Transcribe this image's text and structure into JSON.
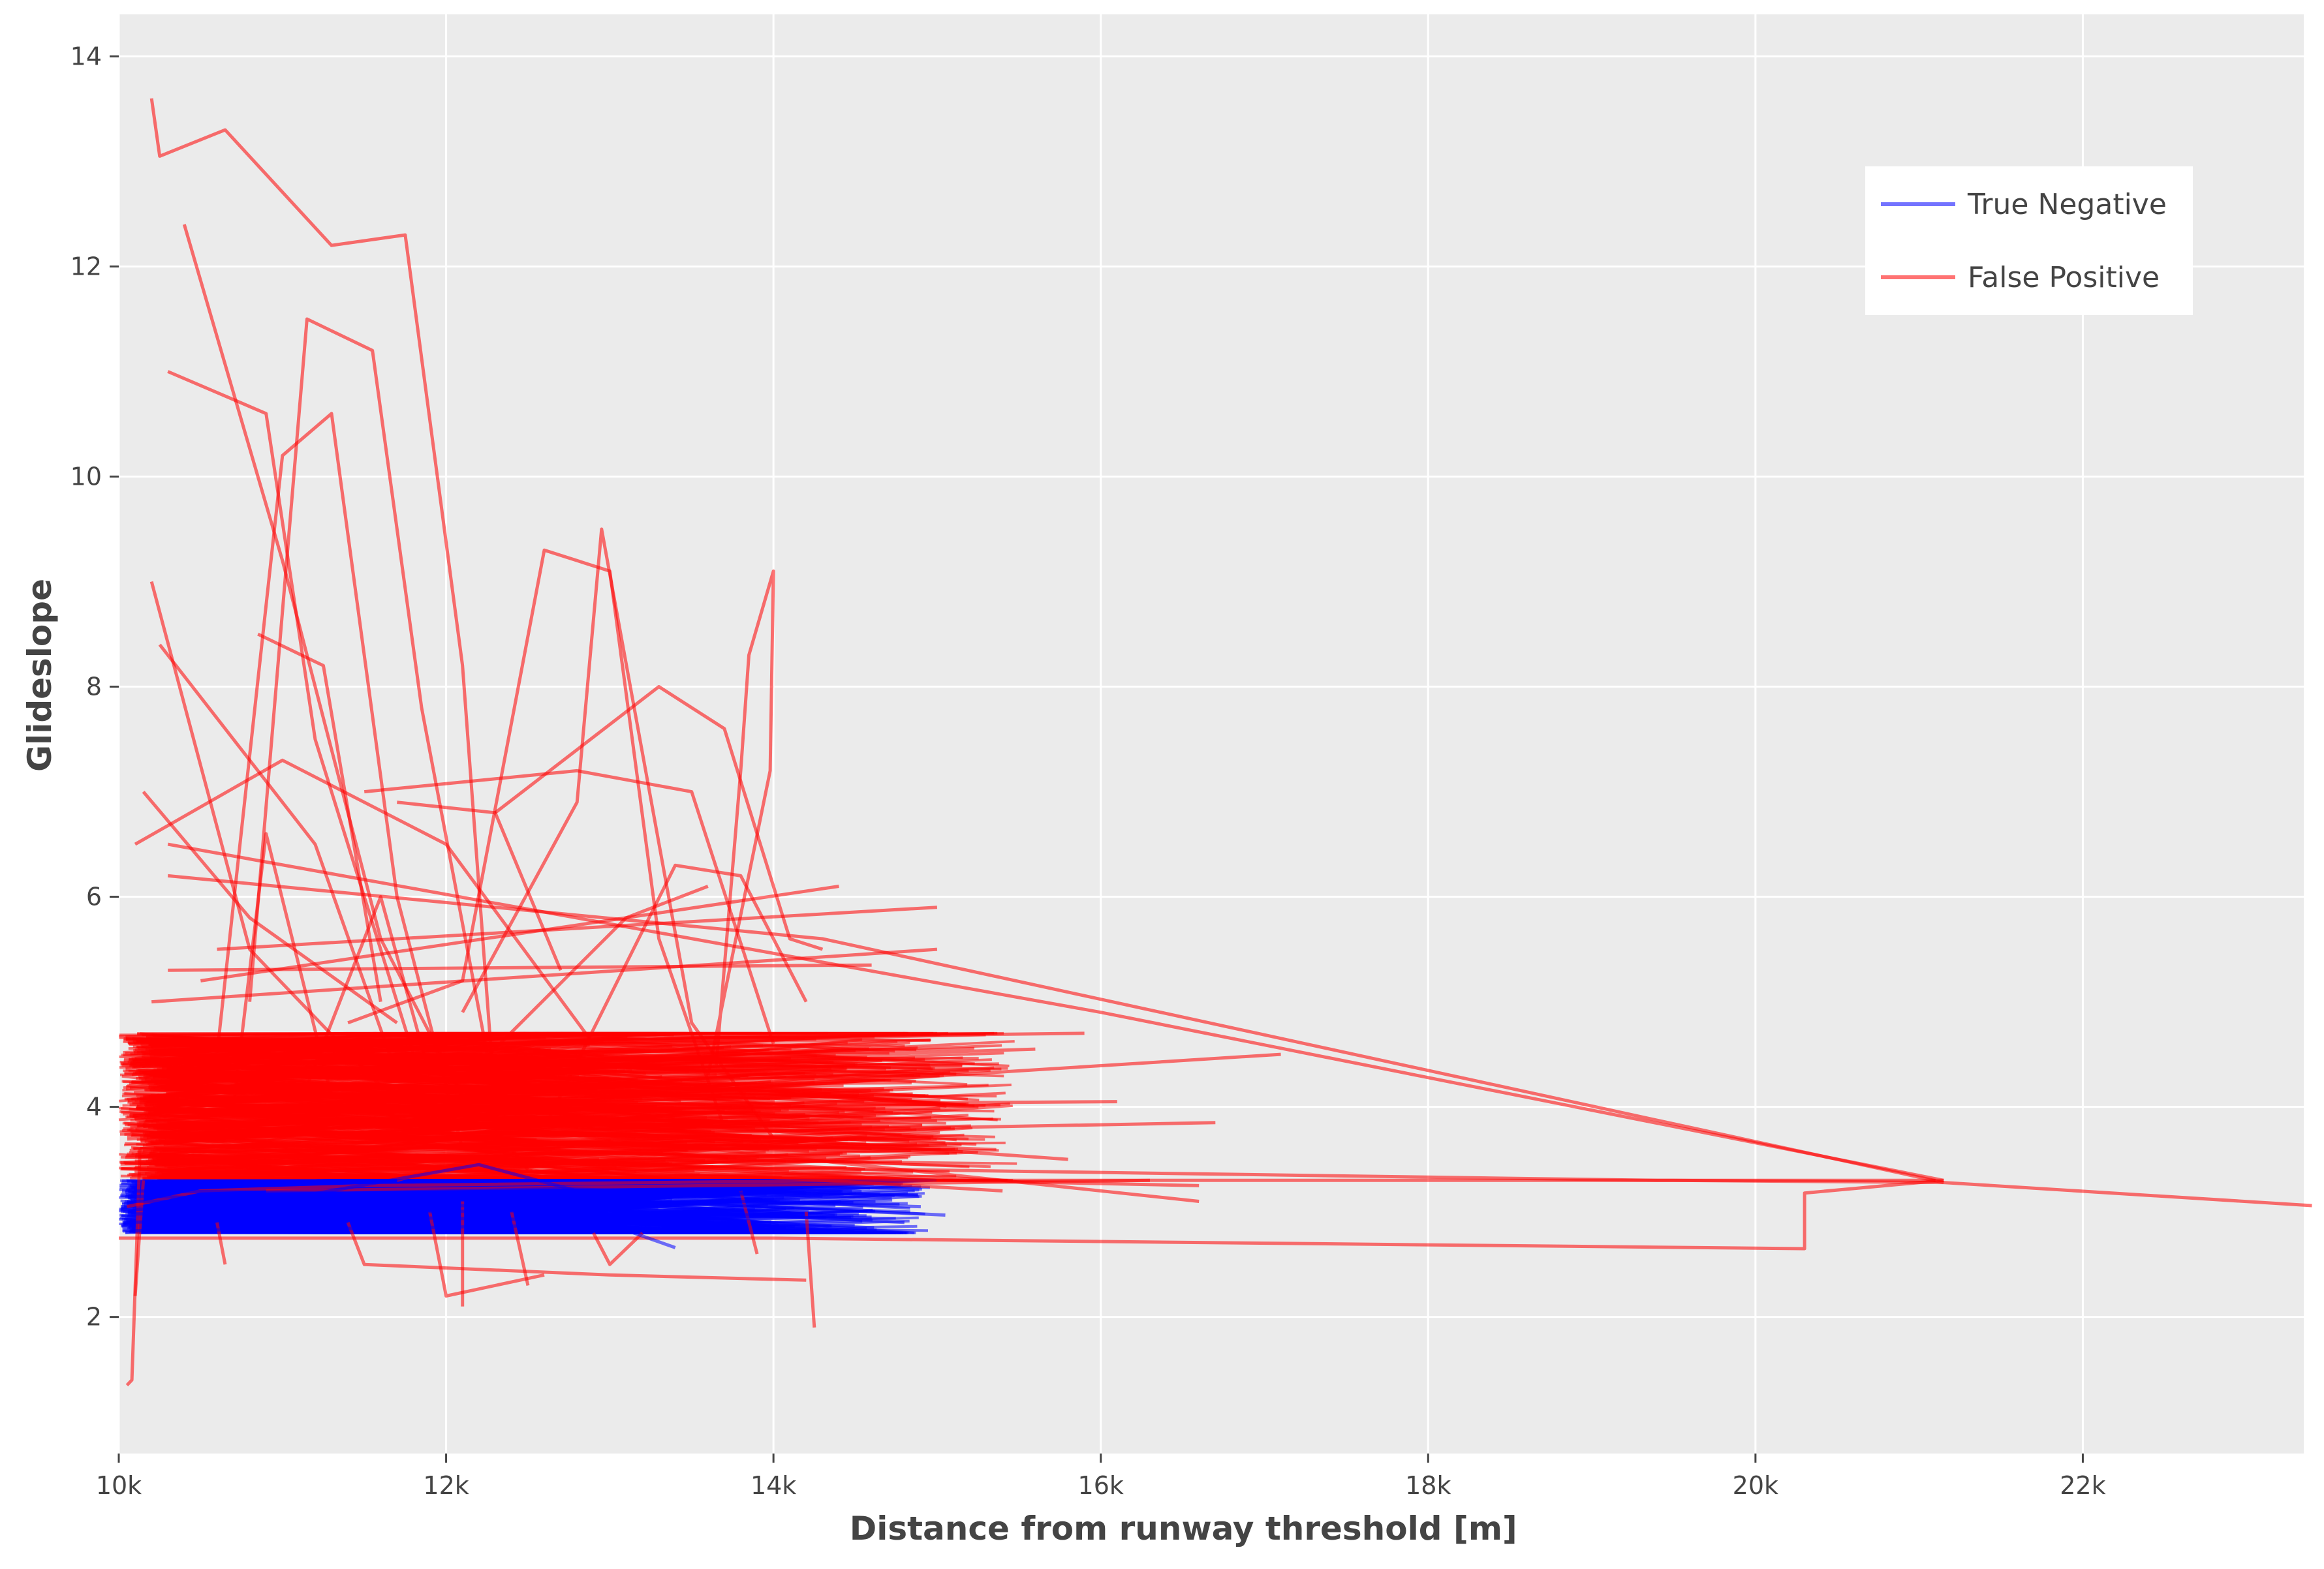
{
  "chart_data": {
    "type": "line",
    "title": "",
    "xlabel": "Distance from runway threshold [m]",
    "ylabel": "Glideslope",
    "xlim": [
      10000,
      23350
    ],
    "ylim": [
      0.7,
      14.4
    ],
    "x_tick_values": [
      10000,
      12000,
      14000,
      16000,
      18000,
      20000,
      22000
    ],
    "x_tick_labels": [
      "10k",
      "12k",
      "14k",
      "16k",
      "18k",
      "20k",
      "22k"
    ],
    "y_tick_values": [
      2,
      4,
      6,
      8,
      10,
      12,
      14
    ],
    "y_tick_labels": [
      "2",
      "4",
      "6",
      "8",
      "10",
      "12",
      "14"
    ],
    "grid": true,
    "background_color": "#ebebeb",
    "legend": {
      "position": "top-right"
    },
    "series": [
      {
        "name": "True Negative",
        "color": "#0000ff",
        "opacity": 0.55,
        "band_x": [
          10000,
          15000
        ],
        "band_y": [
          2.8,
          3.3
        ],
        "traces": [
          [
            [
              10010,
              3.02
            ],
            [
              11200,
              3.08
            ],
            [
              12500,
              3.05
            ],
            [
              13800,
              3.1
            ],
            [
              14900,
              3.05
            ]
          ],
          [
            [
              10030,
              2.9
            ],
            [
              11500,
              2.95
            ],
            [
              12900,
              2.92
            ],
            [
              14600,
              2.95
            ]
          ],
          [
            [
              10020,
              3.2
            ],
            [
              11400,
              3.18
            ],
            [
              12700,
              3.22
            ],
            [
              14300,
              3.15
            ]
          ],
          [
            [
              10050,
              3.1
            ],
            [
              12000,
              3.12
            ],
            [
              13500,
              3.08
            ],
            [
              15050,
              2.97
            ]
          ],
          [
            [
              10100,
              2.82
            ],
            [
              11800,
              2.85
            ],
            [
              13000,
              2.88
            ],
            [
              13400,
              2.66
            ]
          ],
          [
            [
              10040,
              3.15
            ],
            [
              11000,
              3.12
            ],
            [
              12200,
              3.45
            ],
            [
              12800,
              3.2
            ],
            [
              14200,
              3.18
            ]
          ],
          [
            [
              10060,
              2.98
            ],
            [
              11700,
              3.0
            ],
            [
              13200,
              3.02
            ],
            [
              14800,
              2.9
            ]
          ]
        ]
      },
      {
        "name": "False Positive",
        "color": "#ff0000",
        "opacity": 0.55,
        "band_x": [
          10000,
          15500
        ],
        "band_y": [
          3.3,
          4.7
        ],
        "traces": [
          [
            [
              10050,
              3.05
            ],
            [
              10500,
              3.2
            ],
            [
              11500,
              3.25
            ],
            [
              14500,
              3.3
            ],
            [
              19500,
              3.3
            ],
            [
              21150,
              3.28
            ],
            [
              23400,
              3.06
            ]
          ],
          [
            [
              10000,
              2.75
            ],
            [
              14000,
              2.75
            ],
            [
              20300,
              2.65
            ],
            [
              20300,
              3.18
            ],
            [
              21150,
              3.3
            ]
          ],
          [
            [
              10050,
              3.55
            ],
            [
              14000,
              3.42
            ],
            [
              19400,
              3.3
            ],
            [
              21100,
              3.3
            ]
          ],
          [
            [
              10300,
              6.5
            ],
            [
              16000,
              4.9
            ],
            [
              21150,
              3.3
            ]
          ],
          [
            [
              10300,
              6.2
            ],
            [
              14300,
              5.6
            ],
            [
              21150,
              3.28
            ]
          ],
          [
            [
              10200,
              13.6
            ],
            [
              10250,
              13.05
            ],
            [
              10650,
              13.3
            ],
            [
              11300,
              12.2
            ],
            [
              11750,
              12.3
            ],
            [
              12100,
              8.2
            ],
            [
              12300,
              4.0
            ]
          ],
          [
            [
              10400,
              12.4
            ],
            [
              11000,
              9.2
            ],
            [
              11600,
              5.6
            ],
            [
              12200,
              3.8
            ]
          ],
          [
            [
              10300,
              11.0
            ],
            [
              10900,
              10.6
            ],
            [
              11200,
              7.5
            ],
            [
              11800,
              4.5
            ]
          ],
          [
            [
              10600,
              4.5
            ],
            [
              11000,
              10.2
            ],
            [
              11300,
              10.6
            ],
            [
              11700,
              6.0
            ],
            [
              12100,
              3.6
            ]
          ],
          [
            [
              10800,
              5.0
            ],
            [
              11150,
              11.5
            ],
            [
              11550,
              11.2
            ],
            [
              11850,
              7.8
            ],
            [
              12300,
              4.1
            ]
          ],
          [
            [
              10200,
              9.0
            ],
            [
              10800,
              5.5
            ],
            [
              11600,
              4.2
            ]
          ],
          [
            [
              10250,
              8.4
            ],
            [
              11200,
              6.5
            ],
            [
              11700,
              4.3
            ]
          ],
          [
            [
              10850,
              8.5
            ],
            [
              11250,
              8.2
            ],
            [
              11600,
              5.0
            ]
          ],
          [
            [
              10150,
              7.0
            ],
            [
              10800,
              5.8
            ],
            [
              11700,
              4.8
            ]
          ],
          [
            [
              10100,
              6.5
            ],
            [
              11000,
              7.3
            ],
            [
              12000,
              6.5
            ],
            [
              12900,
              4.6
            ]
          ],
          [
            [
              11400,
              4.8
            ],
            [
              12100,
              5.2
            ],
            [
              12600,
              9.3
            ],
            [
              13000,
              9.1
            ],
            [
              13300,
              5.6
            ],
            [
              13700,
              3.8
            ]
          ],
          [
            [
              12100,
              4.9
            ],
            [
              12800,
              6.9
            ],
            [
              12950,
              9.5
            ],
            [
              13500,
              4.8
            ],
            [
              14000,
              3.7
            ]
          ],
          [
            [
              13650,
              4.4
            ],
            [
              13800,
              7.2
            ],
            [
              13850,
              8.3
            ],
            [
              14000,
              9.1
            ],
            [
              13980,
              7.2
            ],
            [
              13600,
              4.3
            ]
          ],
          [
            [
              12300,
              6.8
            ],
            [
              13300,
              8.0
            ],
            [
              13700,
              7.6
            ],
            [
              14100,
              5.6
            ],
            [
              14300,
              5.5
            ]
          ],
          [
            [
              11500,
              7.0
            ],
            [
              12800,
              7.2
            ],
            [
              13500,
              7.0
            ],
            [
              14000,
              4.6
            ]
          ],
          [
            [
              11700,
              6.9
            ],
            [
              12300,
              6.8
            ],
            [
              12700,
              5.3
            ]
          ],
          [
            [
              10500,
              5.2
            ],
            [
              14400,
              6.1
            ]
          ],
          [
            [
              10600,
              5.5
            ],
            [
              15000,
              5.9
            ]
          ],
          [
            [
              10200,
              5.0
            ],
            [
              15000,
              5.5
            ]
          ],
          [
            [
              10300,
              5.3
            ],
            [
              14600,
              5.35
            ]
          ],
          [
            [
              11000,
              3.9
            ],
            [
              17100,
              4.5
            ]
          ],
          [
            [
              11500,
              3.7
            ],
            [
              16700,
              3.85
            ]
          ],
          [
            [
              11200,
              4.0
            ],
            [
              16100,
              4.05
            ]
          ],
          [
            [
              11800,
              3.9
            ],
            [
              16600,
              3.1
            ]
          ],
          [
            [
              11000,
              3.6
            ],
            [
              15400,
              3.2
            ]
          ],
          [
            [
              12000,
              3.4
            ],
            [
              16600,
              3.25
            ]
          ],
          [
            [
              10900,
              3.2
            ],
            [
              16300,
              3.3
            ]
          ],
          [
            [
              10400,
              4.6
            ],
            [
              15900,
              4.7
            ]
          ],
          [
            [
              10700,
              4.3
            ],
            [
              15600,
              4.55
            ]
          ],
          [
            [
              11300,
              4.0
            ],
            [
              15800,
              3.5
            ]
          ],
          [
            [
              10600,
              2.9
            ],
            [
              10650,
              2.5
            ]
          ],
          [
            [
              10150,
              3.3
            ],
            [
              10100,
              2.2
            ]
          ],
          [
            [
              10130,
              3.6
            ],
            [
              10080,
              1.4
            ],
            [
              10050,
              1.35
            ]
          ],
          [
            [
              11400,
              2.9
            ],
            [
              11500,
              2.5
            ],
            [
              13000,
              2.4
            ],
            [
              14200,
              2.35
            ]
          ],
          [
            [
              14200,
              3.0
            ],
            [
              14250,
              1.9
            ]
          ],
          [
            [
              11900,
              3.0
            ],
            [
              12000,
              2.2
            ],
            [
              12600,
              2.4
            ]
          ],
          [
            [
              12100,
              3.1
            ],
            [
              12100,
              2.1
            ]
          ],
          [
            [
              12400,
              3.0
            ],
            [
              12500,
              2.3
            ]
          ],
          [
            [
              12900,
              2.8
            ],
            [
              13000,
              2.5
            ],
            [
              13200,
              2.8
            ]
          ],
          [
            [
              13800,
              3.2
            ],
            [
              13900,
              2.6
            ]
          ],
          [
            [
              12600,
              3.8
            ],
            [
              13400,
              6.3
            ],
            [
              13800,
              6.2
            ],
            [
              14200,
              5.0
            ]
          ],
          [
            [
              12200,
              4.4
            ],
            [
              13100,
              5.8
            ],
            [
              13600,
              6.1
            ]
          ],
          [
            [
              12500,
              3.4
            ],
            [
              12400,
              3.6
            ],
            [
              11700,
              3.3
            ]
          ],
          [
            [
              11150,
              4.2
            ],
            [
              11600,
              6.0
            ],
            [
              11900,
              4.3
            ]
          ],
          [
            [
              10700,
              4.0
            ],
            [
              10900,
              6.6
            ],
            [
              11300,
              4.1
            ]
          ]
        ]
      }
    ]
  }
}
